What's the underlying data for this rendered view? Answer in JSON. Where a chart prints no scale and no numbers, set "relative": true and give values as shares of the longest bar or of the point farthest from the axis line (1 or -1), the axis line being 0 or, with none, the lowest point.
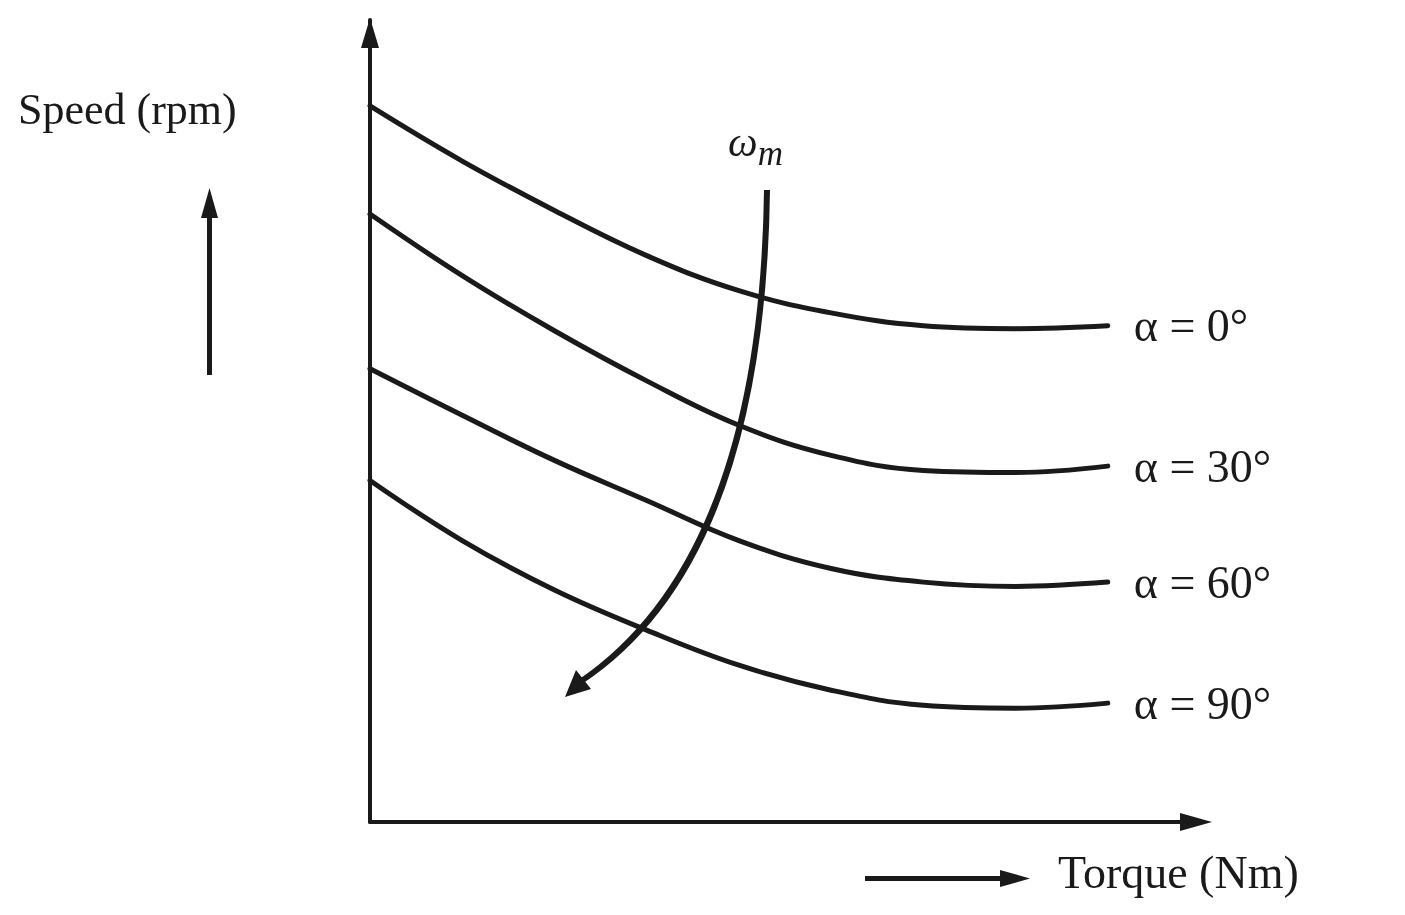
{
  "chart_data": {
    "type": "line",
    "relative": true,
    "xlabel": "Torque (Nm)",
    "ylabel": "Speed (rpm)",
    "annotations": [
      "ω$_{m}$"
    ],
    "categories": [
      null,
      null,
      null,
      null,
      null,
      null,
      null,
      null,
      null,
      null
    ],
    "series": [
      {
        "name": "α = 0°",
        "color": "#1a1a1a",
        "values": [
          1.0,
          0.923,
          0.854,
          0.791,
          0.742,
          0.711,
          0.693,
          0.689,
          0.693,
          null
        ]
      },
      {
        "name": "α = 30°",
        "color": "#1a1a1a",
        "values": [
          0.849,
          0.763,
          0.686,
          0.616,
          0.554,
          0.512,
          0.491,
          0.488,
          0.497,
          null
        ]
      },
      {
        "name": "α = 60°",
        "color": "#1a1a1a",
        "values": [
          0.633,
          0.568,
          0.505,
          0.449,
          0.393,
          0.354,
          0.335,
          0.329,
          0.335,
          null
        ]
      },
      {
        "name": "α = 90°",
        "color": "#1a1a1a",
        "values": [
          0.477,
          0.393,
          0.324,
          0.268,
          0.219,
          0.184,
          0.163,
          0.159,
          0.166,
          null
        ]
      }
    ],
    "grid": false,
    "legend": false,
    "marker": "none",
    "line_style": "solid"
  }
}
